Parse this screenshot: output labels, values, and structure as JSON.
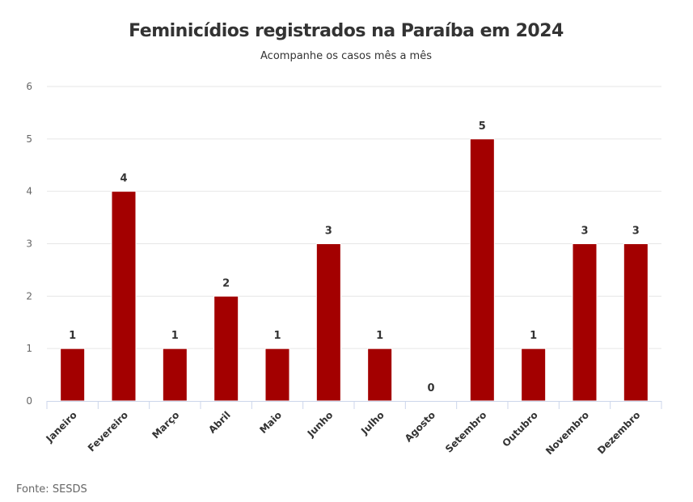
{
  "chart_data": {
    "type": "bar",
    "title": "Feminicídios registrados na Paraíba em 2024",
    "subtitle": "Acompanhe os casos mês a mês",
    "categories": [
      "Janeiro",
      "Fevereiro",
      "Março",
      "Abril",
      "Maio",
      "Junho",
      "Julho",
      "Agosto",
      "Setembro",
      "Outubro",
      "Novembro",
      "Dezembro"
    ],
    "values": [
      1,
      4,
      1,
      2,
      1,
      3,
      1,
      0,
      5,
      1,
      3,
      3
    ],
    "yticks": [
      "0",
      "1",
      "2",
      "3",
      "4",
      "5",
      "6"
    ],
    "ylim": [
      0,
      6
    ],
    "xlabel": "",
    "ylabel": "",
    "grid": true,
    "bar_color": "#a30000",
    "source": "Fonte: SESDS"
  }
}
